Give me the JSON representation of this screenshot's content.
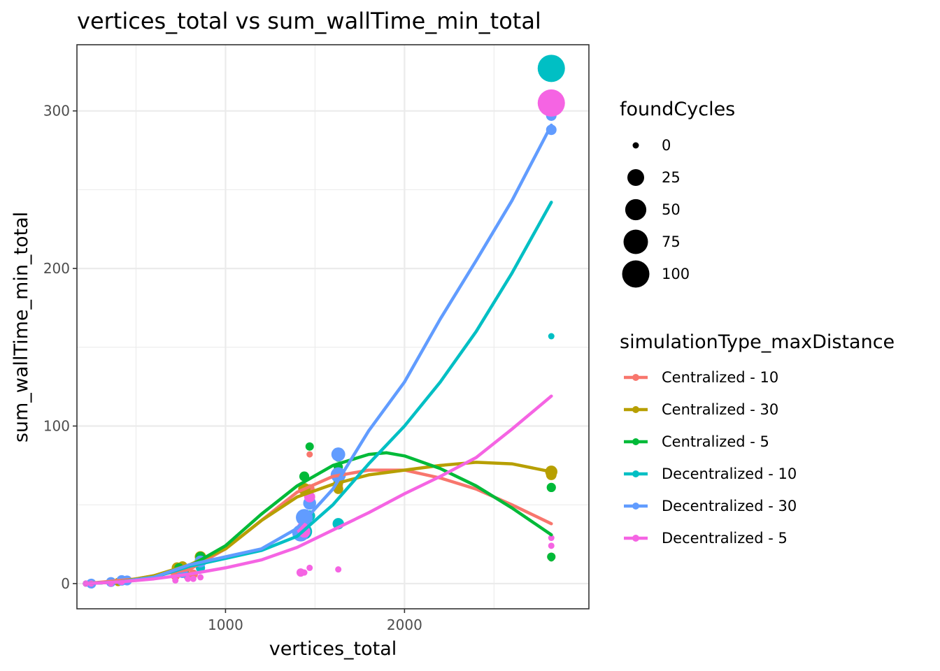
{
  "chart_data": {
    "type": "scatter",
    "title": "vertices_total  vs  sum_wallTime_min_total",
    "xlabel": "vertices_total",
    "ylabel": "sum_wallTime_min_total",
    "xlim": [
      170,
      3030
    ],
    "ylim": [
      -16,
      342
    ],
    "x_ticks": [
      1000,
      2000
    ],
    "x_tick_labels": [
      "1000",
      "2000"
    ],
    "y_ticks": [
      0,
      100,
      200,
      300
    ],
    "y_tick_labels": [
      "0",
      "100",
      "200",
      "300"
    ],
    "x_minor": [
      500,
      1500,
      2500
    ],
    "y_minor": [
      50,
      150,
      250
    ],
    "grid": true,
    "size_legend": {
      "title": "foundCycles",
      "items": [
        {
          "label": "0",
          "value": 0
        },
        {
          "label": "25",
          "value": 25
        },
        {
          "label": "50",
          "value": 50
        },
        {
          "label": "75",
          "value": 75
        },
        {
          "label": "100",
          "value": 100
        }
      ]
    },
    "color_legend": {
      "title": "simulationType_maxDistance"
    },
    "series": [
      {
        "name": "Centralized - 10",
        "color": "#F8766D",
        "points": [
          [
            220,
            0,
            0
          ],
          [
            250,
            0,
            0
          ],
          [
            360,
            1,
            0
          ],
          [
            420,
            1.5,
            1
          ],
          [
            450,
            2,
            1
          ],
          [
            720,
            5,
            2
          ],
          [
            730,
            7,
            2
          ],
          [
            790,
            5,
            2
          ],
          [
            820,
            6,
            2
          ],
          [
            1470,
            82,
            0
          ],
          [
            1470,
            60,
            3
          ],
          [
            1630,
            70,
            3
          ],
          [
            1630,
            62,
            2
          ],
          [
            2820,
            17,
            1
          ],
          [
            2820,
            16,
            0
          ]
        ],
        "fit": [
          [
            220,
            0
          ],
          [
            500,
            3
          ],
          [
            800,
            9
          ],
          [
            1000,
            22
          ],
          [
            1200,
            40
          ],
          [
            1400,
            58
          ],
          [
            1600,
            68
          ],
          [
            1800,
            72
          ],
          [
            2000,
            72
          ],
          [
            2200,
            67
          ],
          [
            2400,
            60
          ],
          [
            2600,
            50
          ],
          [
            2820,
            38
          ]
        ]
      },
      {
        "name": "Centralized - 30",
        "color": "#B79F00",
        "points": [
          [
            220,
            0,
            0
          ],
          [
            250,
            0,
            1
          ],
          [
            360,
            0.5,
            0
          ],
          [
            400,
            1,
            1
          ],
          [
            420,
            2,
            2
          ],
          [
            730,
            10,
            5
          ],
          [
            760,
            11,
            3
          ],
          [
            860,
            17,
            6
          ],
          [
            1440,
            60,
            8
          ],
          [
            1470,
            55,
            4
          ],
          [
            1630,
            60,
            3
          ],
          [
            1630,
            64,
            3
          ],
          [
            2820,
            71,
            8
          ],
          [
            2820,
            69,
            4
          ]
        ],
        "fit": [
          [
            220,
            0
          ],
          [
            400,
            1
          ],
          [
            600,
            5
          ],
          [
            800,
            12
          ],
          [
            1000,
            22
          ],
          [
            1200,
            40
          ],
          [
            1400,
            55
          ],
          [
            1600,
            63
          ],
          [
            1800,
            69
          ],
          [
            2000,
            72
          ],
          [
            2200,
            75
          ],
          [
            2400,
            77
          ],
          [
            2600,
            76
          ],
          [
            2820,
            71
          ]
        ]
      },
      {
        "name": "Centralized - 5",
        "color": "#00BA38",
        "points": [
          [
            220,
            0,
            0
          ],
          [
            250,
            0,
            0
          ],
          [
            360,
            1,
            0
          ],
          [
            420,
            2,
            0
          ],
          [
            740,
            10,
            2
          ],
          [
            770,
            8,
            1
          ],
          [
            860,
            17,
            3
          ],
          [
            1440,
            68,
            3
          ],
          [
            1470,
            87,
            1
          ],
          [
            1630,
            80,
            1
          ],
          [
            1630,
            74,
            2
          ],
          [
            2820,
            61,
            2
          ],
          [
            2820,
            17,
            1
          ],
          [
            2820,
            16,
            0
          ]
        ],
        "fit": [
          [
            220,
            0
          ],
          [
            400,
            1
          ],
          [
            600,
            4
          ],
          [
            800,
            11
          ],
          [
            1000,
            24
          ],
          [
            1200,
            44
          ],
          [
            1400,
            62
          ],
          [
            1600,
            75
          ],
          [
            1800,
            82
          ],
          [
            1900,
            83
          ],
          [
            2000,
            81
          ],
          [
            2200,
            73
          ],
          [
            2400,
            62
          ],
          [
            2600,
            48
          ],
          [
            2820,
            31
          ]
        ]
      },
      {
        "name": "Decentralized - 10",
        "color": "#00BFC4",
        "points": [
          [
            220,
            0,
            0
          ],
          [
            250,
            0,
            0
          ],
          [
            360,
            0,
            0
          ],
          [
            420,
            1,
            0
          ],
          [
            860,
            10,
            2
          ],
          [
            1440,
            33,
            20
          ],
          [
            1470,
            43,
            5
          ],
          [
            1630,
            38,
            6
          ],
          [
            1630,
            67,
            5
          ],
          [
            2820,
            157,
            0
          ],
          [
            2820,
            327,
            100
          ]
        ],
        "fit": [
          [
            220,
            0
          ],
          [
            400,
            1
          ],
          [
            600,
            4
          ],
          [
            800,
            11
          ],
          [
            1000,
            16
          ],
          [
            1200,
            21
          ],
          [
            1400,
            30
          ],
          [
            1600,
            50
          ],
          [
            1800,
            76
          ],
          [
            2000,
            100
          ],
          [
            2200,
            128
          ],
          [
            2400,
            160
          ],
          [
            2600,
            197
          ],
          [
            2820,
            242
          ]
        ]
      },
      {
        "name": "Decentralized - 30",
        "color": "#619CFF",
        "points": [
          [
            220,
            0,
            0
          ],
          [
            250,
            0,
            3
          ],
          [
            360,
            1,
            3
          ],
          [
            420,
            2,
            4
          ],
          [
            450,
            2,
            3
          ],
          [
            760,
            7,
            5
          ],
          [
            860,
            14,
            7
          ],
          [
            1420,
            32,
            25
          ],
          [
            1440,
            42,
            25
          ],
          [
            1470,
            51,
            10
          ],
          [
            1630,
            82,
            13
          ],
          [
            1630,
            69,
            18
          ],
          [
            2820,
            297,
            4
          ],
          [
            2820,
            288,
            4
          ]
        ],
        "fit": [
          [
            220,
            0
          ],
          [
            400,
            1
          ],
          [
            600,
            4
          ],
          [
            800,
            12
          ],
          [
            1000,
            17
          ],
          [
            1200,
            22
          ],
          [
            1400,
            35
          ],
          [
            1600,
            60
          ],
          [
            1800,
            97
          ],
          [
            2000,
            128
          ],
          [
            2200,
            168
          ],
          [
            2400,
            205
          ],
          [
            2600,
            243
          ],
          [
            2820,
            291
          ]
        ]
      },
      {
        "name": "Decentralized - 5",
        "color": "#F564E3",
        "points": [
          [
            220,
            0,
            0
          ],
          [
            250,
            0,
            0
          ],
          [
            360,
            0,
            0
          ],
          [
            420,
            1,
            0
          ],
          [
            720,
            2,
            0
          ],
          [
            790,
            3,
            0
          ],
          [
            820,
            3,
            0
          ],
          [
            860,
            4,
            0
          ],
          [
            1420,
            7,
            1
          ],
          [
            1440,
            7,
            0
          ],
          [
            1470,
            10,
            0
          ],
          [
            1430,
            35,
            8
          ],
          [
            1440,
            33,
            8
          ],
          [
            1470,
            55,
            5
          ],
          [
            1630,
            9,
            0
          ],
          [
            2820,
            305,
            100
          ],
          [
            2820,
            29,
            0
          ],
          [
            2820,
            24,
            0
          ]
        ],
        "fit": [
          [
            220,
            0
          ],
          [
            400,
            1
          ],
          [
            600,
            3
          ],
          [
            800,
            6
          ],
          [
            1000,
            10
          ],
          [
            1200,
            15
          ],
          [
            1400,
            23
          ],
          [
            1600,
            34
          ],
          [
            1800,
            45
          ],
          [
            2000,
            57
          ],
          [
            2200,
            68
          ],
          [
            2400,
            80
          ],
          [
            2600,
            98
          ],
          [
            2820,
            119
          ]
        ]
      }
    ]
  }
}
